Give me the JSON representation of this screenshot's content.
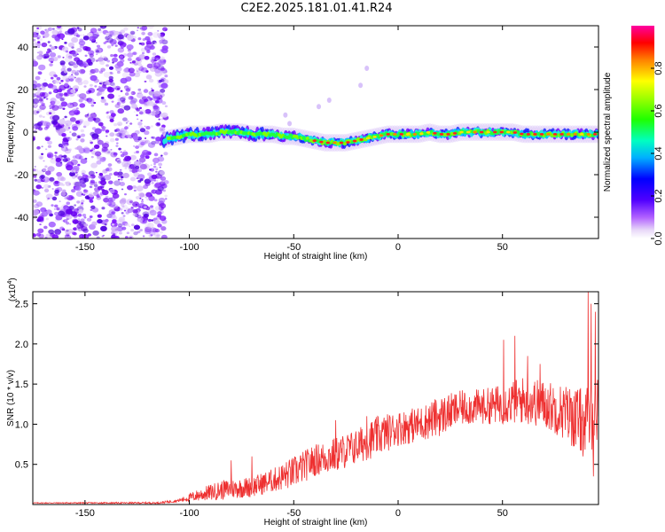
{
  "title": "C2E2.2025.181.01.41.R24",
  "chart_data": [
    {
      "type": "heatmap",
      "name": "spectrogram",
      "xlabel": "Height of straight line (km)",
      "ylabel": "Frequency (Hz)",
      "xlim": [
        -175,
        96
      ],
      "ylim": [
        -50,
        50
      ],
      "x_ticks": [
        -150,
        -100,
        -50,
        0,
        50
      ],
      "y_ticks": [
        -40,
        -20,
        0,
        20,
        40
      ],
      "colorbar": {
        "label": "Normalized spectral amplitude",
        "range": [
          0,
          1
        ],
        "ticks": [
          0.0,
          0.2,
          0.4,
          0.6,
          0.8
        ],
        "tick_labels": [
          "0.0",
          "0.2",
          "0.4",
          "0.6",
          "0.8"
        ],
        "colors": [
          "#ffffff",
          "#e8d8f8",
          "#9000ff",
          "#0000ff",
          "#00c8ff",
          "#00ff80",
          "#40ff00",
          "#ffff00",
          "#ff8000",
          "#ff0000",
          "#ff00a0"
        ]
      },
      "noise_region_x": [
        -175,
        -111
      ],
      "ridge": [
        {
          "x": -113,
          "y": -4
        },
        {
          "x": -110,
          "y": -3
        },
        {
          "x": -105,
          "y": -2
        },
        {
          "x": -100,
          "y": -1
        },
        {
          "x": -95,
          "y": -1
        },
        {
          "x": -90,
          "y": -1
        },
        {
          "x": -85,
          "y": 0
        },
        {
          "x": -80,
          "y": 0
        },
        {
          "x": -75,
          "y": 0
        },
        {
          "x": -70,
          "y": -1
        },
        {
          "x": -65,
          "y": -1
        },
        {
          "x": -60,
          "y": -1
        },
        {
          "x": -55,
          "y": -2
        },
        {
          "x": -50,
          "y": -2
        },
        {
          "x": -45,
          "y": -3
        },
        {
          "x": -40,
          "y": -4
        },
        {
          "x": -35,
          "y": -5
        },
        {
          "x": -30,
          "y": -5
        },
        {
          "x": -25,
          "y": -5
        },
        {
          "x": -20,
          "y": -4
        },
        {
          "x": -15,
          "y": -3
        },
        {
          "x": -10,
          "y": -2
        },
        {
          "x": -5,
          "y": -1
        },
        {
          "x": 0,
          "y": -1
        },
        {
          "x": 5,
          "y": -1
        },
        {
          "x": 10,
          "y": -1
        },
        {
          "x": 15,
          "y": 0
        },
        {
          "x": 20,
          "y": -1
        },
        {
          "x": 25,
          "y": -1
        },
        {
          "x": 30,
          "y": 0
        },
        {
          "x": 35,
          "y": 0
        },
        {
          "x": 40,
          "y": 0
        },
        {
          "x": 45,
          "y": 0
        },
        {
          "x": 50,
          "y": 0
        },
        {
          "x": 55,
          "y": 0
        },
        {
          "x": 60,
          "y": -1
        },
        {
          "x": 65,
          "y": -1
        },
        {
          "x": 70,
          "y": -1
        },
        {
          "x": 75,
          "y": -1
        },
        {
          "x": 80,
          "y": -1
        },
        {
          "x": 85,
          "y": -1
        },
        {
          "x": 90,
          "y": -1
        },
        {
          "x": 95,
          "y": -1
        }
      ]
    },
    {
      "type": "line",
      "name": "snr",
      "xlabel": "Height of straight line (km)",
      "ylabel": "SNR (10 * v/v)",
      "y_multiplier_label": "(x10",
      "y_multiplier_exp": "4",
      "xlim": [
        -175,
        96
      ],
      "ylim": [
        0,
        2.65
      ],
      "x_ticks": [
        -150,
        -100,
        -50,
        0,
        50
      ],
      "y_ticks": [
        0.5,
        1.0,
        1.5,
        2.0,
        2.5
      ],
      "y_tick_labels": [
        "0.5",
        "1.0",
        "1.5",
        "2.0",
        "2.5"
      ],
      "line_color": "#ee3030",
      "envelope": [
        {
          "x": -175,
          "mean": 0.02,
          "amp": 0.005
        },
        {
          "x": -115,
          "mean": 0.02,
          "amp": 0.01
        },
        {
          "x": -105,
          "mean": 0.05,
          "amp": 0.02
        },
        {
          "x": -95,
          "mean": 0.12,
          "amp": 0.08
        },
        {
          "x": -85,
          "mean": 0.18,
          "amp": 0.12
        },
        {
          "x": -70,
          "mean": 0.22,
          "amp": 0.13
        },
        {
          "x": -60,
          "mean": 0.3,
          "amp": 0.15
        },
        {
          "x": -50,
          "mean": 0.4,
          "amp": 0.2
        },
        {
          "x": -40,
          "mean": 0.55,
          "amp": 0.2
        },
        {
          "x": -30,
          "mean": 0.62,
          "amp": 0.22
        },
        {
          "x": -20,
          "mean": 0.72,
          "amp": 0.22
        },
        {
          "x": -10,
          "mean": 0.85,
          "amp": 0.25
        },
        {
          "x": 0,
          "mean": 0.95,
          "amp": 0.22
        },
        {
          "x": 10,
          "mean": 1.0,
          "amp": 0.22
        },
        {
          "x": 20,
          "mean": 1.1,
          "amp": 0.25
        },
        {
          "x": 30,
          "mean": 1.2,
          "amp": 0.22
        },
        {
          "x": 40,
          "mean": 1.22,
          "amp": 0.22
        },
        {
          "x": 50,
          "mean": 1.25,
          "amp": 0.25
        },
        {
          "x": 60,
          "mean": 1.3,
          "amp": 0.3
        },
        {
          "x": 70,
          "mean": 1.25,
          "amp": 0.3
        },
        {
          "x": 80,
          "mean": 1.15,
          "amp": 0.35
        },
        {
          "x": 90,
          "mean": 1.0,
          "amp": 0.45
        },
        {
          "x": 96,
          "mean": 1.2,
          "amp": 0.4
        }
      ],
      "peaks": [
        {
          "x": 50.5,
          "y": 2.05
        },
        {
          "x": 56,
          "y": 2.1
        },
        {
          "x": 62,
          "y": 1.85
        },
        {
          "x": 68,
          "y": 1.75
        },
        {
          "x": 91,
          "y": 2.65
        },
        {
          "x": 92.5,
          "y": 2.5
        },
        {
          "x": 93.5,
          "y": 0.35
        },
        {
          "x": 94.5,
          "y": 2.4
        },
        {
          "x": -30,
          "y": 1.05
        },
        {
          "x": -15,
          "y": 1.1
        },
        {
          "x": -70,
          "y": 0.6
        },
        {
          "x": -80,
          "y": 0.55
        }
      ]
    }
  ]
}
